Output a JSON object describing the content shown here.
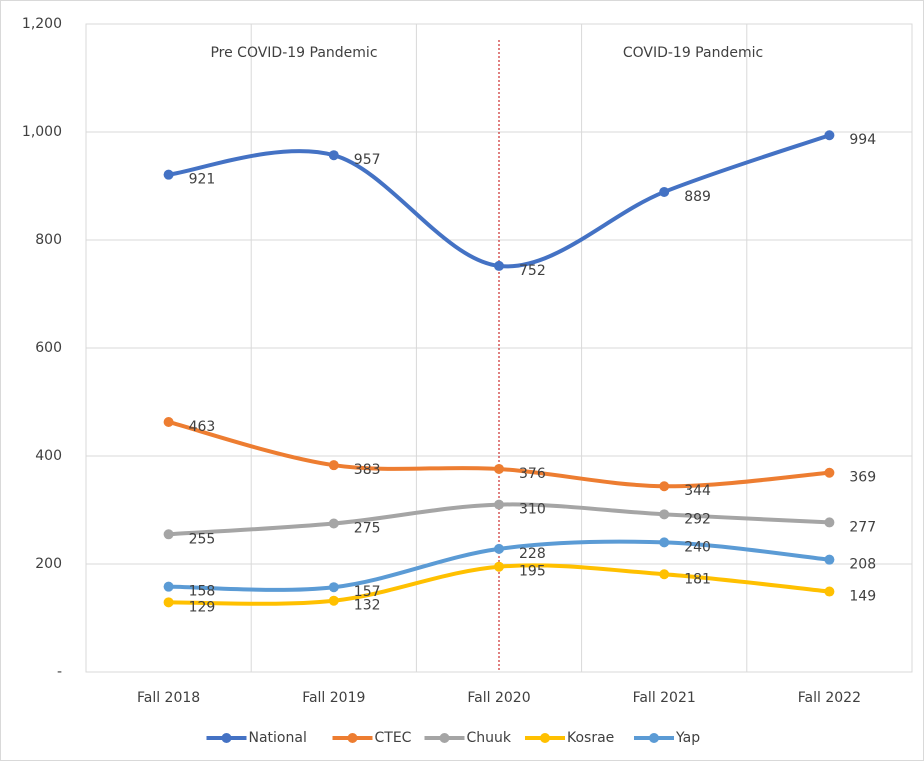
{
  "chart_data": {
    "type": "line",
    "annotations": [
      "Pre COVID-19 Pandemic",
      "COVID-19 Pandemic"
    ],
    "categories": [
      "Fall 2018",
      "Fall 2019",
      "Fall 2020",
      "Fall 2021",
      "Fall 2022"
    ],
    "series": [
      {
        "name": "National",
        "color": "#4472c4",
        "values": [
          921,
          957,
          752,
          889,
          994
        ]
      },
      {
        "name": "CTEC",
        "color": "#ed7d31",
        "values": [
          463,
          383,
          376,
          344,
          369
        ]
      },
      {
        "name": "Chuuk",
        "color": "#a5a5a5",
        "values": [
          255,
          275,
          310,
          292,
          277
        ]
      },
      {
        "name": "Kosrae",
        "color": "#ffc000",
        "values": [
          129,
          132,
          195,
          181,
          149
        ]
      },
      {
        "name": "Yap",
        "color": "#5b9bd5",
        "values": [
          158,
          157,
          228,
          240,
          208
        ]
      }
    ],
    "ylim": [
      0,
      1200
    ],
    "yticks": [
      {
        "value": 0,
        "label": "-"
      },
      200,
      400,
      600,
      800,
      {
        "value": 1000,
        "label": "1,000"
      },
      {
        "value": 1200,
        "label": "1,200"
      }
    ],
    "grid": true,
    "smooth": true,
    "legend": "bottom"
  }
}
